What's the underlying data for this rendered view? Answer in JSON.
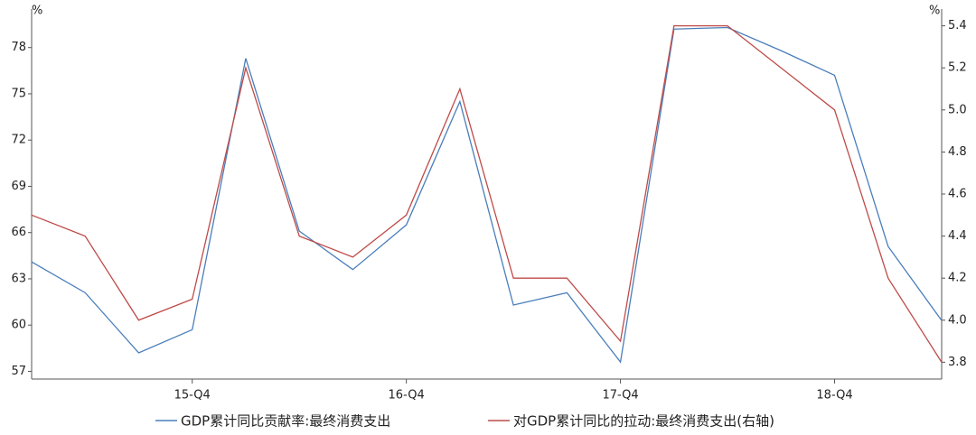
{
  "chart_data": {
    "type": "line",
    "ylabel": "%",
    "y2label": "%",
    "categories": [
      null,
      null,
      null,
      "15-Q4",
      null,
      null,
      null,
      "16-Q4",
      null,
      null,
      null,
      "17-Q4",
      null,
      null,
      null,
      "18-Q4",
      null,
      null
    ],
    "series": [
      {
        "name": "GDP累计同比贡献率:最终消费支出",
        "color": "#4a7ebb",
        "values": [
          64.1,
          62.1,
          58.2,
          59.7,
          77.3,
          66.1,
          63.6,
          66.5,
          74.5,
          61.3,
          62.1,
          57.6,
          79.2,
          79.3,
          77.8,
          76.2,
          65.1,
          60.3
        ]
      },
      {
        "name": "对GDP累计同比的拉动:最终消费支出(右轴)",
        "color": "#be4b48",
        "axis": "y2",
        "values": [
          4.5,
          4.4,
          4.0,
          4.1,
          5.2,
          4.4,
          4.3,
          4.5,
          5.1,
          4.2,
          4.2,
          3.9,
          5.4,
          5.4,
          5.2,
          5.0,
          4.2,
          3.8
        ]
      }
    ],
    "ylim": [
      56.5,
      80.5
    ],
    "yticks": [
      57,
      60,
      63,
      66,
      69,
      72,
      75,
      78
    ],
    "y2lim": [
      3.72,
      5.48
    ],
    "y2ticks": [
      3.8,
      {
        "value": 4.0,
        "label": "4.0"
      },
      4.2,
      4.4,
      4.6,
      4.8,
      {
        "value": 5.0,
        "label": "5.0"
      },
      5.2,
      5.4
    ],
    "grid": false
  }
}
